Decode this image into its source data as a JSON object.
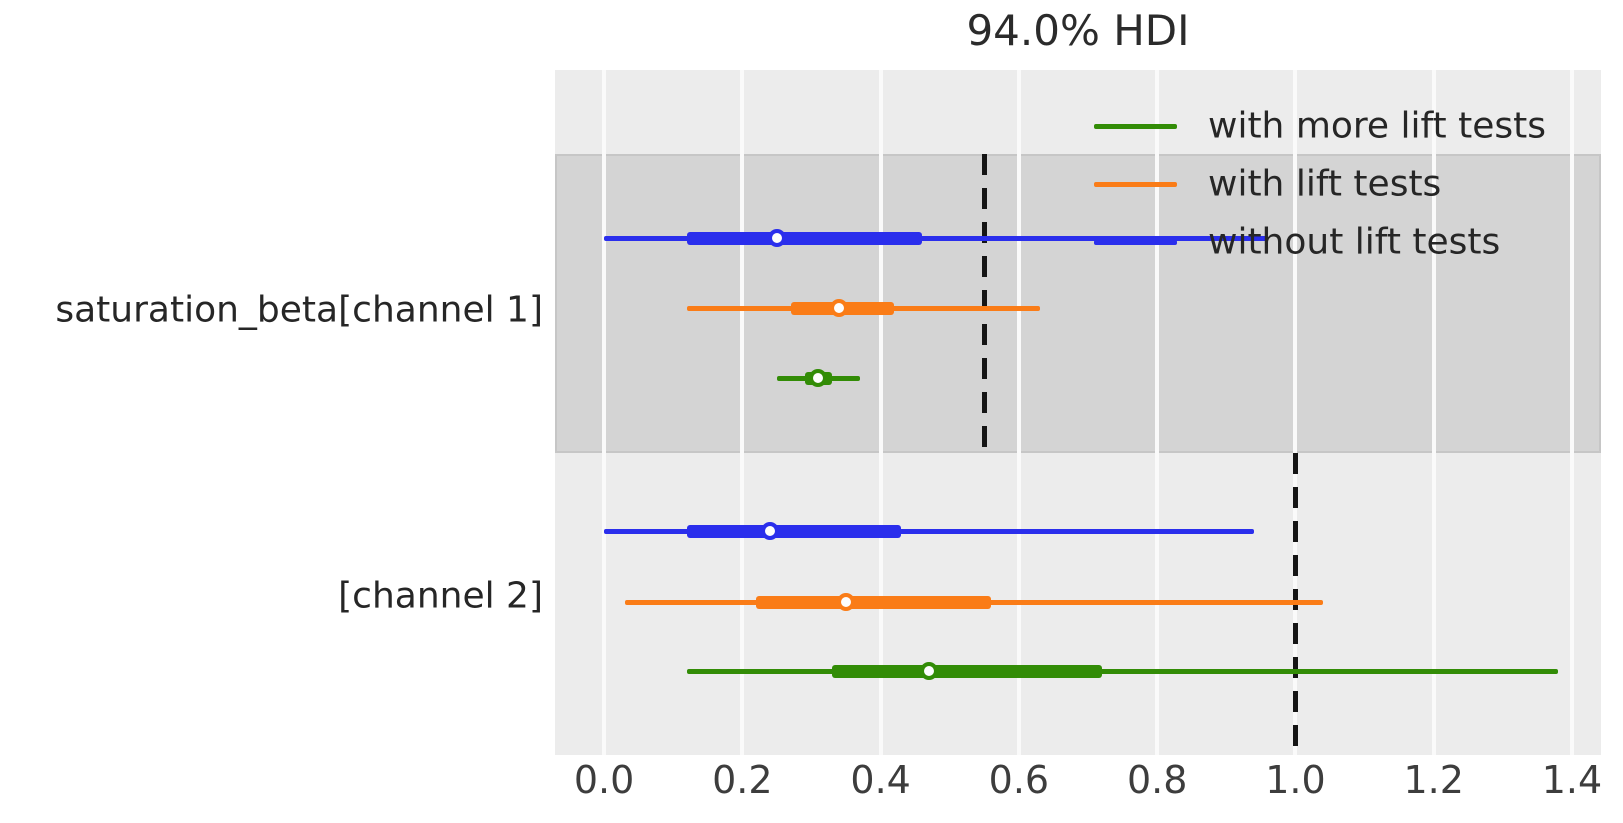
{
  "chart_data": {
    "type": "forest",
    "title": "94.0% HDI",
    "hdi_prob": "94.0%",
    "xlim": [
      -0.071,
      1.442
    ],
    "x_ticks": {
      "labels": [
        "0.0",
        "0.2",
        "0.4",
        "0.6",
        "0.8",
        "1.0",
        "1.2",
        "1.4"
      ],
      "values": [
        0.0,
        0.2,
        0.4,
        0.6,
        0.8,
        1.0,
        1.2,
        1.4
      ]
    },
    "grid": "on",
    "legend_position": "upper right",
    "legend": [
      {
        "label": "with more lift tests",
        "color_key": "green"
      },
      {
        "label": "with lift tests",
        "color_key": "orange"
      },
      {
        "label": "without lift tests",
        "color_key": "blue"
      }
    ],
    "groups": [
      {
        "label": "saturation_beta[channel 1]",
        "shaded": true,
        "ref_value": 0.55,
        "rows": [
          {
            "series": "without lift tests",
            "color_key": "blue",
            "hdi_low": 0.0,
            "hdi_high": 0.96,
            "thick_low": 0.12,
            "thick_high": 0.46,
            "median": 0.25
          },
          {
            "series": "with lift tests",
            "color_key": "orange",
            "hdi_low": 0.12,
            "hdi_high": 0.63,
            "thick_low": 0.27,
            "thick_high": 0.42,
            "median": 0.34
          },
          {
            "series": "with more lift tests",
            "color_key": "green",
            "hdi_low": 0.25,
            "hdi_high": 0.37,
            "thick_low": 0.29,
            "thick_high": 0.33,
            "median": 0.31
          }
        ]
      },
      {
        "label": "[channel 2]",
        "shaded": false,
        "ref_value": 1.0,
        "rows": [
          {
            "series": "without lift tests",
            "color_key": "blue",
            "hdi_low": 0.0,
            "hdi_high": 0.94,
            "thick_low": 0.12,
            "thick_high": 0.43,
            "median": 0.24
          },
          {
            "series": "with lift tests",
            "color_key": "orange",
            "hdi_low": 0.03,
            "hdi_high": 1.04,
            "thick_low": 0.22,
            "thick_high": 0.56,
            "median": 0.35
          },
          {
            "series": "with more lift tests",
            "color_key": "green",
            "hdi_low": 0.12,
            "hdi_high": 1.38,
            "thick_low": 0.33,
            "thick_high": 0.72,
            "median": 0.47
          }
        ]
      }
    ],
    "colors": {
      "blue": "#2a2eec",
      "orange": "#fa7c17",
      "green": "#328c06",
      "plot_background": "#ececec",
      "shaded_band": "#d4d4d4",
      "band_border": "#c6c6c6",
      "gridline": "#fafafa",
      "reference_line": "#151515",
      "text": "#262626"
    }
  }
}
